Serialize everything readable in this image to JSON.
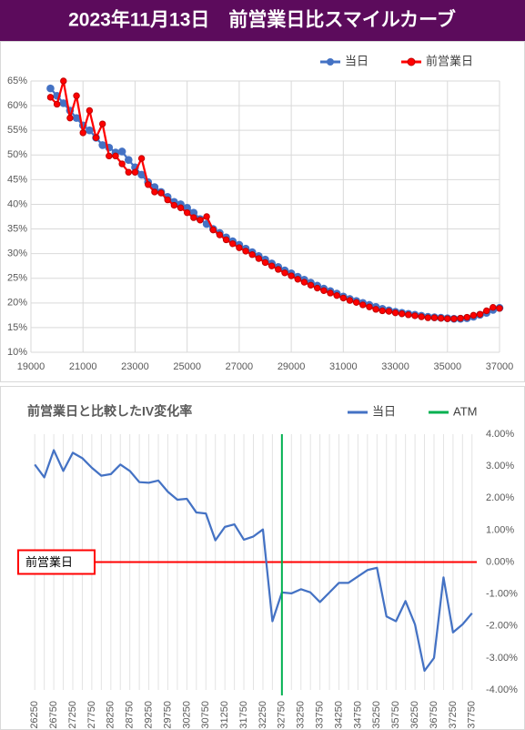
{
  "header": {
    "title": "2023年11月13日　前営業日比スマイルカーブ"
  },
  "chart_data": [
    {
      "type": "line",
      "x": [
        19750,
        20000,
        20250,
        20500,
        20750,
        21000,
        21250,
        21500,
        21750,
        22000,
        22250,
        22500,
        22750,
        23000,
        23250,
        23500,
        23750,
        24000,
        24250,
        24500,
        24750,
        25000,
        25250,
        25500,
        25750,
        26000,
        26250,
        26500,
        26750,
        27000,
        27250,
        27500,
        27750,
        28000,
        28250,
        28500,
        28750,
        29000,
        29250,
        29500,
        29750,
        30000,
        30250,
        30500,
        30750,
        31000,
        31250,
        31500,
        31750,
        32000,
        32250,
        32500,
        32750,
        33000,
        33250,
        33500,
        33750,
        34000,
        34250,
        34500,
        34750,
        35000,
        35250,
        35500,
        35750,
        36000,
        36250,
        36500,
        36750,
        37000
      ],
      "series": [
        {
          "name": "当日",
          "color": "#4472c4",
          "marker": "large",
          "values": [
            63.5,
            62,
            60.5,
            59,
            57.5,
            56,
            55,
            53.5,
            52,
            51.5,
            50.5,
            50.7,
            49,
            47.5,
            46,
            44.5,
            43.5,
            42.5,
            41.5,
            40.5,
            40,
            39.3,
            38.3,
            37,
            36,
            35,
            34.2,
            33.3,
            32.5,
            31.8,
            31,
            30.3,
            29.5,
            28.8,
            28,
            27.3,
            26.6,
            26,
            25.3,
            24.7,
            24.1,
            23.5,
            22.9,
            22.4,
            21.9,
            21.3,
            20.8,
            20.4,
            20,
            19.6,
            19.2,
            18.8,
            18.5,
            18.2,
            18,
            17.8,
            17.6,
            17.4,
            17.2,
            17.1,
            17,
            16.9,
            16.8,
            16.8,
            16.9,
            17.2,
            17.6,
            18,
            18.6,
            19
          ]
        },
        {
          "name": "前営業日",
          "color": "#ff0000",
          "marker": "ring",
          "values": [
            61.7,
            60.3,
            65,
            57.5,
            62,
            54.5,
            59,
            53.5,
            56.3,
            49.8,
            49.8,
            48.2,
            46.5,
            46.5,
            49.3,
            44,
            42.5,
            42.3,
            40.9,
            39.8,
            39.3,
            38.3,
            37.3,
            36.8,
            37.5,
            34.8,
            33.8,
            32.8,
            32,
            31.2,
            30.5,
            29.8,
            29,
            28.2,
            27.5,
            26.8,
            26.1,
            25.5,
            24.8,
            24.2,
            23.6,
            23,
            22.5,
            22,
            21.5,
            21,
            20.5,
            20.1,
            19.6,
            19.2,
            18.7,
            18.4,
            18.3,
            18,
            17.8,
            17.6,
            17.4,
            17.2,
            17,
            17,
            16.9,
            16.8,
            16.8,
            16.9,
            17.1,
            17.5,
            17.7,
            18.4,
            19.1,
            18.9
          ]
        }
      ],
      "xlim": [
        19000,
        37000
      ],
      "xticks": [
        19000,
        21000,
        23000,
        25000,
        27000,
        29000,
        31000,
        33000,
        35000,
        37000
      ],
      "ylim": [
        10,
        65
      ],
      "yticks": [
        {
          "value": 10,
          "label": "10%"
        },
        {
          "value": 15,
          "label": "15%"
        },
        {
          "value": 20,
          "label": "20%"
        },
        {
          "value": 25,
          "label": "25%"
        },
        {
          "value": 30,
          "label": "30%"
        },
        {
          "value": 35,
          "label": "35%"
        },
        {
          "value": 40,
          "label": "40%"
        },
        {
          "value": 45,
          "label": "45%"
        },
        {
          "value": 50,
          "label": "50%"
        },
        {
          "value": 55,
          "label": "55%"
        },
        {
          "value": 60,
          "label": "60%"
        },
        {
          "value": 65,
          "label": "65%"
        }
      ],
      "grid": true,
      "legend": "top-right"
    },
    {
      "type": "line",
      "title": "前営業日と比較したIV変化率",
      "categories": [
        "26250",
        null,
        "26750",
        null,
        "27250",
        null,
        "27750",
        null,
        "28250",
        null,
        "28750",
        null,
        "29250",
        null,
        "29750",
        null,
        "30250",
        null,
        "30750",
        null,
        "31250",
        null,
        "31750",
        null,
        "32250",
        null,
        "32750",
        null,
        "33250",
        null,
        "33750",
        null,
        "34250",
        null,
        "34750",
        null,
        "35250",
        null,
        "35750",
        null,
        "36250",
        null,
        "36750",
        null,
        "37250",
        null,
        "37750"
      ],
      "series": [
        {
          "name": "当日",
          "color": "#4472c4",
          "values": [
            3.05,
            2.65,
            3.5,
            2.85,
            3.42,
            3.25,
            2.95,
            2.7,
            2.75,
            3.05,
            2.85,
            2.5,
            2.48,
            2.55,
            2.2,
            1.95,
            1.98,
            1.55,
            1.52,
            0.68,
            1.1,
            1.18,
            0.7,
            0.8,
            1.02,
            -1.85,
            -0.95,
            -0.98,
            -0.85,
            -0.95,
            -1.25,
            -0.95,
            -0.65,
            -0.65,
            -0.45,
            -0.25,
            -0.18,
            -1.7,
            -1.85,
            -1.22,
            -1.95,
            -3.4,
            -3.0,
            -0.48,
            -2.2,
            -1.95,
            -1.6
          ]
        }
      ],
      "atm": {
        "name": "ATM",
        "color": "#00b050",
        "category": "32750"
      },
      "reference": {
        "label": "前営業日",
        "value": 0,
        "color": "#ff0000"
      },
      "ylim": [
        -4,
        4
      ],
      "yticks": [
        {
          "value": -4,
          "label": "-4.00%"
        },
        {
          "value": -3,
          "label": "-3.00%"
        },
        {
          "value": -2,
          "label": "-2.00%"
        },
        {
          "value": -1,
          "label": "-1.00%"
        },
        {
          "value": 0,
          "label": "0.00%"
        },
        {
          "value": 1,
          "label": "1.00%"
        },
        {
          "value": 2,
          "label": "2.00%"
        },
        {
          "value": 3,
          "label": "3.00%"
        },
        {
          "value": 4,
          "label": "4.00%"
        }
      ],
      "y_axis_side": "right",
      "grid": true,
      "legend": "top-right"
    }
  ]
}
